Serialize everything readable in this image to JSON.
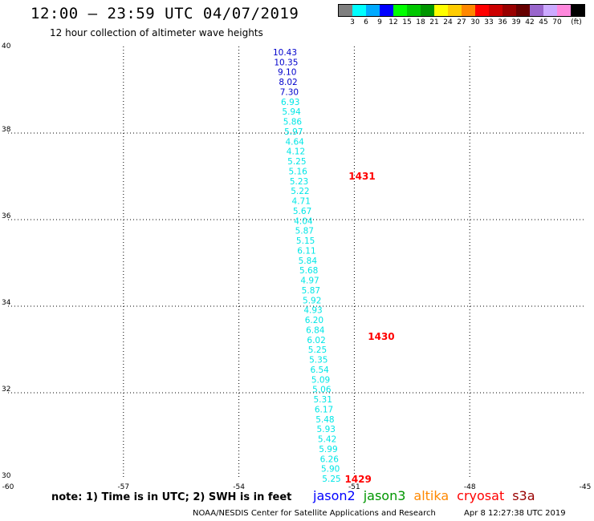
{
  "title": "12:00 — 23:59 UTC 04/07/2019",
  "subtitle": "12 hour collection of altimeter wave heights",
  "legend": {
    "unit": "(ft)",
    "colors": [
      "#7f7f7f",
      "#00ffff",
      "#00aaff",
      "#0000ff",
      "#00ff00",
      "#00c800",
      "#009600",
      "#ffff00",
      "#ffcc00",
      "#ff8800",
      "#ff0000",
      "#cc0000",
      "#990000",
      "#660000",
      "#9966cc",
      "#ccaaff",
      "#ff88dd",
      "#000000"
    ],
    "labels": [
      "3",
      "6",
      "9",
      "12",
      "15",
      "18",
      "21",
      "24",
      "27",
      "30",
      "33",
      "36",
      "39",
      "42",
      "45",
      "70"
    ]
  },
  "map": {
    "lon_ticks": [
      "-60",
      "-57",
      "-54",
      "-51",
      "-48",
      "-45"
    ],
    "lat_ticks": [
      "40",
      "38",
      "36",
      "34",
      "32",
      "30"
    ],
    "lon_range": [
      -60,
      -45
    ],
    "lat_range": [
      30,
      40
    ],
    "grid": true
  },
  "track": {
    "colors": {
      "high": "#0000cc",
      "low": "#00e6e6"
    },
    "values": [
      "10.43",
      "10.35",
      "9.10",
      "8.02",
      "7.30",
      "6.93",
      "5.94",
      "5.86",
      "5.97",
      "4.64",
      "4.12",
      "5.25",
      "5.16",
      "5.23",
      "5.22",
      "4.71",
      "5.67",
      "4.04",
      "5.87",
      "5.15",
      "6.11",
      "5.84",
      "5.68",
      "4.97",
      "5.87",
      "5.92",
      "4.93",
      "6.20",
      "6.84",
      "6.02",
      "5.25",
      "5.35",
      "6.54",
      "5.09",
      "5.06",
      "5.31",
      "6.17",
      "5.48",
      "5.93",
      "5.42",
      "5.99",
      "6.26",
      "5.90",
      "5.25"
    ],
    "times": [
      {
        "label": "1431",
        "lat": 37.0,
        "lon": -50.8
      },
      {
        "label": "1430",
        "lat": 33.3,
        "lon": -50.3
      },
      {
        "label": "1429",
        "lat": 30.0,
        "lon": -50.9
      }
    ],
    "time_color": "#ff0000"
  },
  "note": "note: 1) Time is in UTC; 2) SWH is in feet",
  "satellites": [
    {
      "name": "jason2",
      "color": "#0000ff"
    },
    {
      "name": "jason3",
      "color": "#009600"
    },
    {
      "name": "altika",
      "color": "#ff8800"
    },
    {
      "name": "cryosat",
      "color": "#ff0000"
    },
    {
      "name": "s3a",
      "color": "#990000"
    }
  ],
  "credit": "NOAA/NESDIS Center for Satellite Applications and Research",
  "timestamp": "Apr  8 12:27:38 UTC 2019"
}
